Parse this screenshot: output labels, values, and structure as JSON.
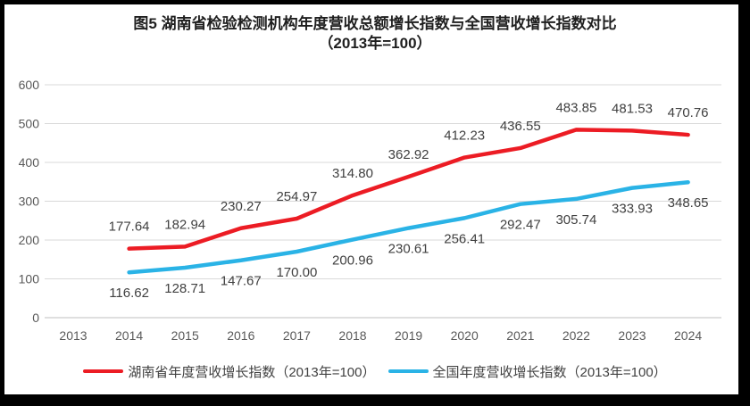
{
  "title": {
    "line1": "图5 湖南省检验检测机构年度营收总额增长指数与全国营收增长指数对比",
    "line2": "（2013年=100）"
  },
  "chart_data": {
    "type": "line",
    "title": "图5 湖南省检验检测机构年度营收总额增长指数与全国营收增长指数对比（2013年=100）",
    "categories": [
      "2013",
      "2014",
      "2015",
      "2016",
      "2017",
      "2018",
      "2019",
      "2020",
      "2021",
      "2022",
      "2023",
      "2024"
    ],
    "series": [
      {
        "name": "湖南省年度营收增长指数（2013年=100）",
        "color": "#ec1c24",
        "label_position": "above",
        "values": [
          null,
          177.64,
          182.94,
          230.27,
          254.97,
          314.8,
          362.92,
          412.23,
          436.55,
          483.85,
          481.53,
          470.76
        ]
      },
      {
        "name": "全国年度营收增长指数（2013年=100）",
        "color": "#2ab3e6",
        "label_position": "below",
        "values": [
          null,
          116.62,
          128.71,
          147.67,
          170.0,
          200.96,
          230.61,
          256.41,
          292.47,
          305.74,
          333.93,
          348.65
        ]
      }
    ],
    "ylim": [
      0,
      600
    ],
    "ytick_step": 100,
    "yticks": [
      0,
      100,
      200,
      300,
      400,
      500,
      600
    ],
    "grid": true,
    "legend_position": "bottom",
    "data_label_decimals": 2,
    "colors": {
      "gridline": "#d9d9d9",
      "axis_line": "#bfbfbf",
      "axis_text": "#595959",
      "data_label_text": "#404040"
    }
  }
}
